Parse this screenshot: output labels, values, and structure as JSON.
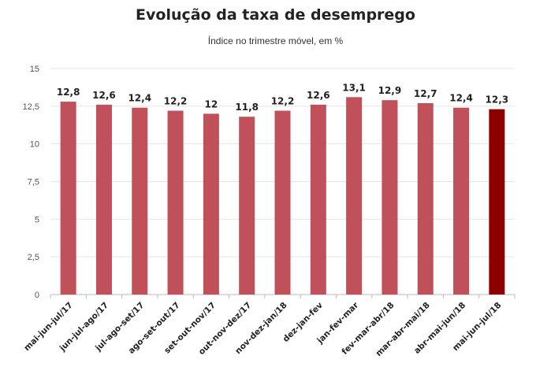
{
  "header": {
    "title": "Evolução da taxa de desemprego",
    "subtitle": "Índice no trimestre móvel, em %"
  },
  "chart_data": {
    "type": "bar",
    "title": "Evolução da taxa de desemprego",
    "subtitle": "Índice no trimestre móvel, em %",
    "xlabel": "",
    "ylabel": "",
    "ylim": [
      0,
      15
    ],
    "yticks": [
      0,
      2.5,
      5,
      7.5,
      10,
      12.5,
      15
    ],
    "ytick_labels": [
      "0",
      "2,5",
      "5",
      "7,5",
      "10",
      "12,5",
      "15"
    ],
    "grid": true,
    "categories": [
      "mai-jun-jul/17",
      "jun-jul-ago/17",
      "jul-ago-set/17",
      "ago-set-out/17",
      "set-out-nov/17",
      "out-nov-dez/17",
      "nov-dez-jan/18",
      "dez-jan-fev",
      "jan-fev-mar",
      "fev-mar-abr/18",
      "mar-abr-mai/18",
      "abr-mai-jun/18",
      "mai-jun-jul/18"
    ],
    "values": [
      12.8,
      12.6,
      12.4,
      12.2,
      12,
      11.8,
      12.2,
      12.6,
      13.1,
      12.9,
      12.7,
      12.4,
      12.3
    ],
    "value_labels": [
      "12,8",
      "12,6",
      "12,4",
      "12,2",
      "12",
      "11,8",
      "12,2",
      "12,6",
      "13,1",
      "12,9",
      "12,7",
      "12,4",
      "12,3"
    ],
    "colors": {
      "bar": "#c0505a",
      "highlight": "#8e0000"
    },
    "highlight_index": 12
  }
}
